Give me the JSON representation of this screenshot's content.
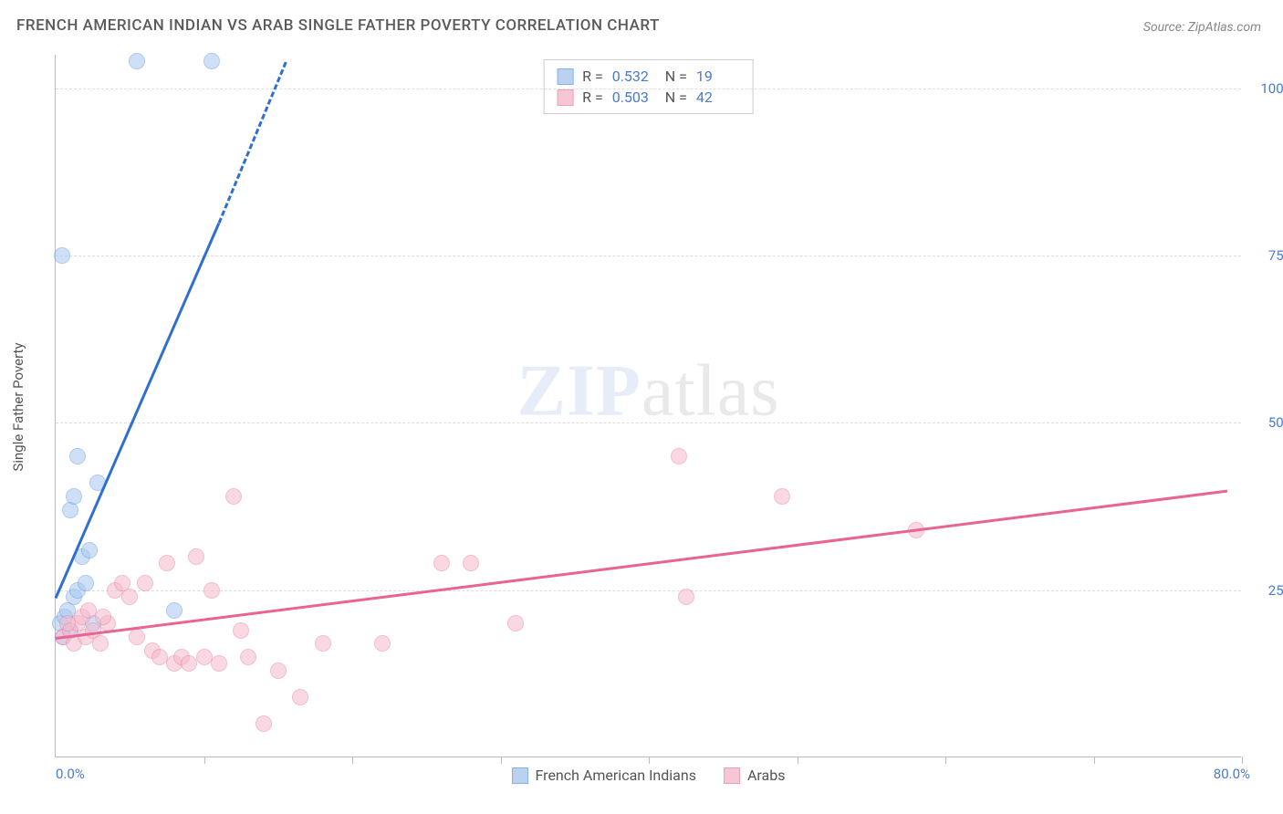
{
  "title": "FRENCH AMERICAN INDIAN VS ARAB SINGLE FATHER POVERTY CORRELATION CHART",
  "source_label": "Source: ZipAtlas.com",
  "y_axis_label": "Single Father Poverty",
  "watermark_a": "ZIP",
  "watermark_b": "atlas",
  "chart": {
    "type": "scatter",
    "background_color": "#ffffff",
    "grid_color": "#dddddd",
    "axis_color": "#bbbbbb",
    "tick_label_color": "#4a7bd0",
    "xlim": [
      0,
      80
    ],
    "ylim": [
      0,
      105
    ],
    "x_ticks": [
      0,
      10,
      20,
      30,
      40,
      50,
      60,
      70,
      80
    ],
    "x_tick_labels": {
      "0": "0.0%",
      "80": "80.0%"
    },
    "y_ticks": [
      25,
      50,
      75,
      100
    ],
    "y_tick_labels": {
      "25": "25.0%",
      "50": "50.0%",
      "75": "75.0%",
      "100": "100.0%"
    },
    "point_radius": 9,
    "series": [
      {
        "id": "french_american_indians",
        "label": "French American Indians",
        "fill_color": "#a9c8f0",
        "stroke_color": "#6b9fe0",
        "fill_opacity": 0.55,
        "line_color": "#2f6fd0",
        "line_width": 3,
        "R": "0.532",
        "N": "19",
        "points": [
          [
            0.3,
            20
          ],
          [
            0.6,
            21
          ],
          [
            0.8,
            22
          ],
          [
            1.0,
            19
          ],
          [
            1.2,
            24
          ],
          [
            1.5,
            25
          ],
          [
            2.0,
            26
          ],
          [
            1.8,
            30
          ],
          [
            2.3,
            31
          ],
          [
            1.0,
            37
          ],
          [
            1.2,
            39
          ],
          [
            1.5,
            45
          ],
          [
            2.8,
            41
          ],
          [
            0.4,
            75
          ],
          [
            5.5,
            104
          ],
          [
            10.5,
            104
          ],
          [
            2.5,
            20
          ],
          [
            0.5,
            18
          ],
          [
            8.0,
            22
          ]
        ],
        "trend": {
          "x1": 0,
          "y1": 24,
          "x2": 11,
          "y2": 80
        },
        "trend_dash": {
          "x1": 11,
          "y1": 80,
          "x2": 15.5,
          "y2": 104
        }
      },
      {
        "id": "arabs",
        "label": "Arabs",
        "fill_color": "#f6b9cb",
        "stroke_color": "#e88aa8",
        "fill_opacity": 0.55,
        "line_color": "#e76493",
        "line_width": 2.5,
        "R": "0.503",
        "N": "42",
        "points": [
          [
            0.5,
            18
          ],
          [
            1.0,
            19
          ],
          [
            1.2,
            17
          ],
          [
            1.5,
            20
          ],
          [
            2.0,
            18
          ],
          [
            2.5,
            19
          ],
          [
            3.0,
            17
          ],
          [
            3.5,
            20
          ],
          [
            4.0,
            25
          ],
          [
            4.5,
            26
          ],
          [
            5.0,
            24
          ],
          [
            5.5,
            18
          ],
          [
            6.0,
            26
          ],
          [
            6.5,
            16
          ],
          [
            7.0,
            15
          ],
          [
            7.5,
            29
          ],
          [
            8.0,
            14
          ],
          [
            8.5,
            15
          ],
          [
            9.0,
            14
          ],
          [
            9.5,
            30
          ],
          [
            10.0,
            15
          ],
          [
            10.5,
            25
          ],
          [
            11.0,
            14
          ],
          [
            12.0,
            39
          ],
          [
            12.5,
            19
          ],
          [
            13.0,
            15
          ],
          [
            14.0,
            5
          ],
          [
            15.0,
            13
          ],
          [
            16.5,
            9
          ],
          [
            18.0,
            17
          ],
          [
            22.0,
            17
          ],
          [
            26.0,
            29
          ],
          [
            28.0,
            29
          ],
          [
            31.0,
            20
          ],
          [
            42.0,
            45
          ],
          [
            42.5,
            24
          ],
          [
            49.0,
            39
          ],
          [
            58.0,
            34
          ],
          [
            1.8,
            21
          ],
          [
            2.2,
            22
          ],
          [
            3.2,
            21
          ],
          [
            0.8,
            20
          ]
        ],
        "trend": {
          "x1": 0,
          "y1": 18,
          "x2": 79,
          "y2": 40
        }
      }
    ]
  },
  "legend_top": {
    "R_label": "R =",
    "N_label": "N ="
  },
  "legend_bottom": {
    "items": [
      "French American Indians",
      "Arabs"
    ]
  }
}
